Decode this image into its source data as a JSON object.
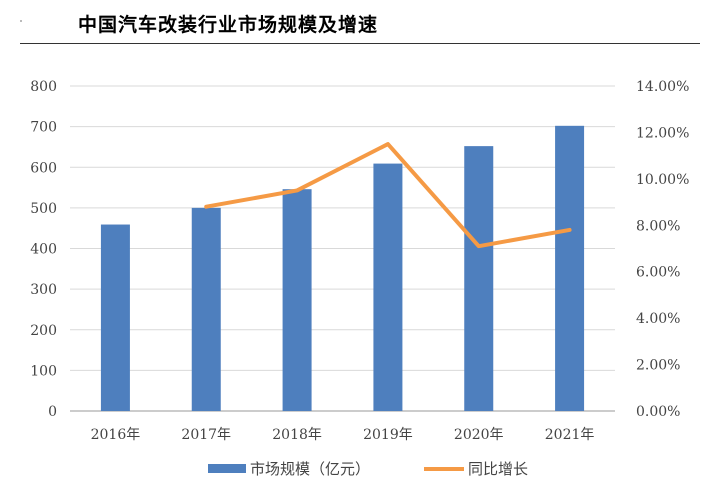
{
  "title": "中国汽车改装行业市场规模及增速",
  "chart_data": {
    "type": "bar",
    "categories": [
      "2016年",
      "2017年",
      "2018年",
      "2019年",
      "2020年",
      "2021年"
    ],
    "series": [
      {
        "name": "市场规模（亿元）",
        "type": "bar",
        "axis": "left",
        "values": [
          459,
          500,
          546,
          609,
          652,
          702
        ],
        "color": "#4e7fbe"
      },
      {
        "name": "同比增长",
        "type": "line",
        "axis": "right",
        "values": [
          null,
          0.088,
          0.095,
          0.115,
          0.071,
          0.078
        ],
        "color": "#f59a45"
      }
    ],
    "y_left": {
      "ylim": [
        0,
        800
      ],
      "ticks": [
        "0",
        "100",
        "200",
        "300",
        "400",
        "500",
        "600",
        "700",
        "800"
      ]
    },
    "y_right": {
      "ylim": [
        0,
        0.14
      ],
      "ticks": [
        "0.00%",
        "2.00%",
        "4.00%",
        "6.00%",
        "8.00%",
        "10.00%",
        "12.00%",
        "14.00%"
      ]
    },
    "grid": true,
    "legend": "bottom"
  }
}
